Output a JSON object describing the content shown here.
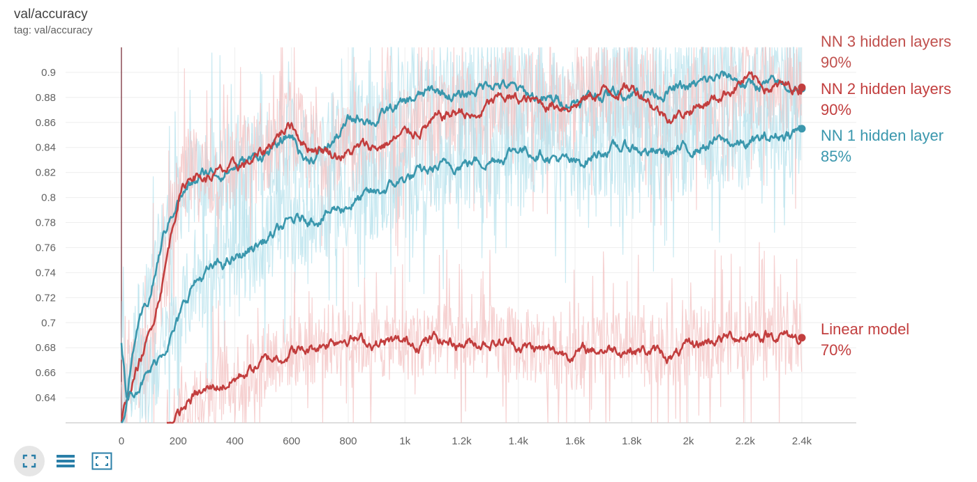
{
  "card": {
    "title": "val/accuracy",
    "tag": "tag: val/accuracy"
  },
  "toolbar": {
    "buttons": [
      {
        "icon": "fit-to-data-icon",
        "active": true
      },
      {
        "icon": "toggle-log-scale-icon",
        "active": false
      },
      {
        "icon": "expand-fullscreen-icon",
        "active": false
      }
    ]
  },
  "colors": {
    "red_smoothed": "#c23e3e",
    "red_raw": "#f3c2c2",
    "teal_smoothed": "#3a97ad",
    "teal_raw": "#b7e1ec",
    "axis_text": "#616161",
    "grid": "#eeeeee",
    "baseline": "#8b4b55"
  },
  "annotations": [
    {
      "label": "NN 3 hidden layers",
      "value": "90%",
      "color": "#c0504d"
    },
    {
      "label": "NN 2 hidden layers",
      "value": "90%",
      "color": "#c23e3e"
    },
    {
      "label": "NN 1 hidden layer",
      "value": "85%",
      "color": "#3a97ad"
    },
    {
      "label": "Linear model",
      "value": "70%",
      "color": "#c23e3e"
    }
  ],
  "chart_data": {
    "type": "line",
    "title": "val/accuracy",
    "xlim": [
      0,
      2400
    ],
    "ylim": [
      0.62,
      0.92
    ],
    "x_ticks": [
      0,
      200,
      400,
      600,
      800,
      1000,
      1200,
      1400,
      1600,
      1800,
      2000,
      2200,
      2400
    ],
    "x_tick_labels": [
      "0",
      "200",
      "400",
      "600",
      "800",
      "1k",
      "1.2k",
      "1.4k",
      "1.6k",
      "1.8k",
      "2k",
      "2.2k",
      "2.4k"
    ],
    "y_ticks": [
      0.64,
      0.66,
      0.68,
      0.7,
      0.72,
      0.74,
      0.76,
      0.78,
      0.8,
      0.82,
      0.84,
      0.86,
      0.88,
      0.9
    ],
    "y_tick_labels": [
      "0.64",
      "0.66",
      "0.68",
      "0.7",
      "0.72",
      "0.74",
      "0.76",
      "0.78",
      "0.8",
      "0.82",
      "0.84",
      "0.86",
      "0.88",
      "0.9"
    ],
    "grid": true,
    "series": [
      {
        "color": "#3a97ad",
        "raw_color": "#b7e1ec",
        "x": [
          0,
          20,
          50,
          100,
          150,
          200,
          250,
          300,
          350,
          400,
          450,
          500,
          550,
          600,
          650,
          700,
          750,
          800,
          850,
          900,
          950,
          1000,
          1100,
          1200,
          1300,
          1350,
          1400,
          1500,
          1600,
          1700,
          1800,
          1900,
          2000,
          2100,
          2150,
          2200,
          2300,
          2400
        ],
        "y": [
          0.685,
          0.64,
          0.69,
          0.72,
          0.77,
          0.8,
          0.81,
          0.82,
          0.82,
          0.825,
          0.83,
          0.835,
          0.84,
          0.85,
          0.83,
          0.835,
          0.845,
          0.86,
          0.865,
          0.862,
          0.87,
          0.875,
          0.885,
          0.88,
          0.893,
          0.89,
          0.885,
          0.877,
          0.878,
          0.883,
          0.885,
          0.885,
          0.887,
          0.895,
          0.897,
          0.89,
          0.89,
          0.887
        ]
      },
      {
        "color": "#c23e3e",
        "raw_color": "#f3c2c2",
        "x": [
          0,
          20,
          50,
          100,
          150,
          200,
          250,
          300,
          350,
          400,
          450,
          500,
          550,
          600,
          650,
          700,
          750,
          800,
          850,
          900,
          950,
          1000,
          1100,
          1200,
          1250,
          1300,
          1350,
          1400,
          1500,
          1600,
          1700,
          1800,
          1850,
          1900,
          1950,
          2000,
          2100,
          2200,
          2300,
          2400
        ],
        "y": [
          0.62,
          0.64,
          0.66,
          0.69,
          0.74,
          0.8,
          0.82,
          0.815,
          0.82,
          0.823,
          0.828,
          0.835,
          0.85,
          0.86,
          0.842,
          0.84,
          0.835,
          0.835,
          0.84,
          0.84,
          0.845,
          0.85,
          0.86,
          0.87,
          0.862,
          0.875,
          0.88,
          0.878,
          0.875,
          0.875,
          0.885,
          0.888,
          0.882,
          0.868,
          0.865,
          0.87,
          0.88,
          0.895,
          0.888,
          0.888
        ]
      },
      {
        "color": "#3a97ad",
        "raw_color": "#b7e1ec",
        "x": [
          0,
          20,
          50,
          100,
          150,
          200,
          250,
          300,
          350,
          400,
          450,
          500,
          550,
          600,
          650,
          700,
          800,
          900,
          1000,
          1100,
          1200,
          1300,
          1400,
          1500,
          1600,
          1700,
          1800,
          1900,
          2000,
          2100,
          2200,
          2300,
          2400
        ],
        "y": [
          0.62,
          0.64,
          0.65,
          0.66,
          0.68,
          0.7,
          0.73,
          0.74,
          0.745,
          0.75,
          0.758,
          0.765,
          0.772,
          0.78,
          0.783,
          0.785,
          0.795,
          0.803,
          0.815,
          0.822,
          0.828,
          0.83,
          0.84,
          0.835,
          0.825,
          0.838,
          0.84,
          0.835,
          0.838,
          0.845,
          0.842,
          0.848,
          0.855
        ]
      },
      {
        "color": "#c23e3e",
        "raw_color": "#f3c2c2",
        "x": [
          160,
          200,
          250,
          300,
          350,
          400,
          450,
          500,
          550,
          600,
          650,
          700,
          750,
          800,
          850,
          900,
          1000,
          1100,
          1200,
          1300,
          1400,
          1500,
          1600,
          1700,
          1800,
          1900,
          1950,
          2000,
          2100,
          2200,
          2300,
          2400
        ],
        "y": [
          0.62,
          0.625,
          0.64,
          0.645,
          0.65,
          0.655,
          0.662,
          0.668,
          0.673,
          0.678,
          0.677,
          0.682,
          0.687,
          0.69,
          0.685,
          0.684,
          0.683,
          0.687,
          0.684,
          0.685,
          0.683,
          0.677,
          0.676,
          0.679,
          0.68,
          0.675,
          0.672,
          0.68,
          0.687,
          0.69,
          0.691,
          0.688
        ]
      }
    ]
  }
}
